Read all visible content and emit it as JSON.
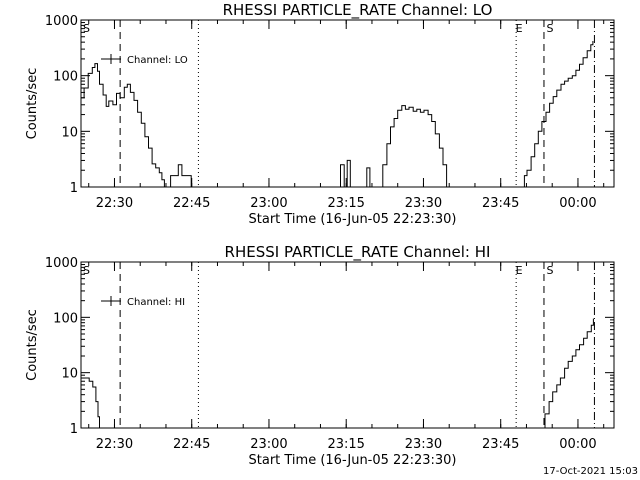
{
  "footer_date": "17-Oct-2021 15:03",
  "colors": {
    "line": "#000000",
    "background": "#ffffff"
  },
  "chart_data": [
    {
      "type": "line",
      "title": "RHESSI PARTICLE_RATE Channel: LO",
      "xlabel": "Start Time (16-Jun-05 22:23:30)",
      "ylabel": "Counts/sec",
      "yscale": "log",
      "ylim": [
        1,
        1000
      ],
      "xlim_minutes": [
        -6.5,
        61.5
      ],
      "x_ticks": [
        {
          "min": 6.5,
          "label": "22:30"
        },
        {
          "min": 21.5,
          "label": "22:45"
        },
        {
          "min": 36.5,
          "label": "23:00"
        },
        {
          "min": 51.5,
          "label": "23:15"
        },
        {
          "min": 66.5,
          "label": "23:30"
        },
        {
          "min": 81.5,
          "label": "23:45"
        },
        {
          "min": 96.5,
          "label": "00:00"
        }
      ],
      "y_ticks": [
        {
          "value": 1,
          "label": "1"
        },
        {
          "value": 10,
          "label": "10"
        },
        {
          "value": 100,
          "label": "100"
        },
        {
          "value": 1000,
          "label": "1000"
        }
      ],
      "legend": "Channel: LO",
      "series": [
        {
          "name": "Channel: LO",
          "points": [
            [
              0.0,
              40
            ],
            [
              0.6,
              60
            ],
            [
              1.4,
              110
            ],
            [
              2.2,
              140
            ],
            [
              2.7,
              165
            ],
            [
              3.2,
              120
            ],
            [
              3.6,
              70
            ],
            [
              4.3,
              45
            ],
            [
              4.9,
              28
            ],
            [
              5.4,
              35
            ],
            [
              6.2,
              30
            ],
            [
              6.9,
              48
            ],
            [
              7.6,
              40
            ],
            [
              8.4,
              62
            ],
            [
              9.0,
              70
            ],
            [
              9.6,
              50
            ],
            [
              10.3,
              36
            ],
            [
              11.0,
              22
            ],
            [
              11.7,
              14
            ],
            [
              12.4,
              8
            ],
            [
              13.1,
              5
            ],
            [
              13.8,
              2.6
            ],
            [
              14.5,
              2.2
            ],
            [
              15.2,
              1.8
            ],
            [
              15.7,
              1.35
            ],
            [
              16.2,
              1.0
            ]
          ]
        },
        {
          "name": "Channel: LO",
          "points": [
            [
              17.3,
              1.0
            ],
            [
              17.4,
              1.6
            ],
            [
              18.2,
              1.6
            ],
            [
              18.9,
              2.5
            ],
            [
              19.6,
              1.6
            ],
            [
              20.3,
              1.6
            ],
            [
              20.7,
              1.6
            ],
            [
              21.4,
              1.0
            ]
          ]
        },
        {
          "name": "Channel: LO",
          "points": [
            [
              50.1,
              1.0
            ],
            [
              50.4,
              2.5
            ],
            [
              51.1,
              1.0
            ],
            [
              51.7,
              3.0
            ],
            [
              52.3,
              1.0
            ]
          ]
        },
        {
          "name": "Channel: LO",
          "points": [
            [
              55.1,
              1.0
            ],
            [
              55.5,
              2.2
            ],
            [
              56.1,
              1.0
            ]
          ]
        },
        {
          "name": "Channel: LO",
          "points": [
            [
              57.9,
              1.0
            ],
            [
              58.6,
              2.5
            ],
            [
              59.4,
              6.0
            ],
            [
              60.1,
              12
            ],
            [
              60.8,
              17
            ],
            [
              61.5,
              24
            ],
            [
              62.3,
              29
            ],
            [
              63.0,
              25
            ],
            [
              63.7,
              27
            ],
            [
              64.5,
              23
            ],
            [
              65.2,
              25
            ],
            [
              65.9,
              22
            ],
            [
              66.6,
              24
            ],
            [
              67.4,
              20
            ],
            [
              68.1,
              15
            ],
            [
              68.8,
              9
            ],
            [
              69.6,
              5
            ],
            [
              70.3,
              2.5
            ],
            [
              71.0,
              1.0
            ]
          ]
        },
        {
          "name": "Channel: LO",
          "points": [
            [
              85.4,
              1.0
            ],
            [
              86.1,
              1.6
            ],
            [
              86.6,
              2.0
            ],
            [
              87.4,
              3.5
            ],
            [
              88.1,
              6.0
            ],
            [
              88.8,
              10
            ],
            [
              89.5,
              15
            ],
            [
              90.3,
              22
            ],
            [
              91.0,
              32
            ],
            [
              91.7,
              42
            ],
            [
              92.4,
              55
            ],
            [
              93.2,
              70
            ],
            [
              93.9,
              80
            ],
            [
              94.6,
              90
            ],
            [
              95.4,
              100
            ],
            [
              96.1,
              125
            ],
            [
              96.8,
              160
            ],
            [
              97.5,
              210
            ],
            [
              98.3,
              280
            ],
            [
              99.0,
              360
            ],
            [
              99.4,
              420
            ]
          ]
        }
      ],
      "markers": {
        "dashed_x": [
          7.6,
          89.9
        ],
        "dotted_x": [
          22.8,
          84.5
        ],
        "dashdot_x": [
          99.7
        ],
        "labels": [
          {
            "text": "S",
            "x": 0.2
          },
          {
            "text": "E",
            "x": 84.2
          },
          {
            "text": "S",
            "x": 90.2
          }
        ]
      }
    },
    {
      "type": "line",
      "title": "RHESSI PARTICLE_RATE Channel: HI",
      "xlabel": "Start Time (16-Jun-05 22:23:30)",
      "ylabel": "Counts/sec",
      "yscale": "log",
      "ylim": [
        1,
        1000
      ],
      "xlim_minutes": [
        -6.5,
        61.5
      ],
      "x_ticks": [
        {
          "min": 6.5,
          "label": "22:30"
        },
        {
          "min": 21.5,
          "label": "22:45"
        },
        {
          "min": 36.5,
          "label": "23:00"
        },
        {
          "min": 51.5,
          "label": "23:15"
        },
        {
          "min": 66.5,
          "label": "23:30"
        },
        {
          "min": 81.5,
          "label": "23:45"
        },
        {
          "min": 96.5,
          "label": "00:00"
        }
      ],
      "y_ticks": [
        {
          "value": 1,
          "label": "1"
        },
        {
          "value": 10,
          "label": "10"
        },
        {
          "value": 100,
          "label": "100"
        },
        {
          "value": 1000,
          "label": "1000"
        }
      ],
      "legend": "Channel: HI",
      "series": [
        {
          "name": "Channel: HI",
          "points": [
            [
              0.0,
              8
            ],
            [
              0.8,
              8
            ],
            [
              1.6,
              7
            ],
            [
              2.3,
              5.5
            ],
            [
              2.9,
              3
            ],
            [
              3.3,
              1.6
            ],
            [
              3.6,
              1.0
            ]
          ]
        },
        {
          "name": "Channel: HI",
          "points": [
            [
              89.7,
              1.0
            ],
            [
              90.1,
              1.8
            ],
            [
              90.9,
              3
            ],
            [
              91.6,
              4.5
            ],
            [
              92.4,
              6
            ],
            [
              93.1,
              8
            ],
            [
              93.9,
              12
            ],
            [
              94.6,
              16
            ],
            [
              95.4,
              20
            ],
            [
              96.1,
              26
            ],
            [
              96.8,
              32
            ],
            [
              97.6,
              42
            ],
            [
              98.3,
              55
            ],
            [
              99.1,
              72
            ],
            [
              99.5,
              95
            ]
          ]
        }
      ],
      "markers": {
        "dashed_x": [
          7.6,
          89.9
        ],
        "dotted_x": [
          22.8,
          84.5
        ],
        "dashdot_x": [
          99.7
        ],
        "labels": [
          {
            "text": "S",
            "x": 0.2
          },
          {
            "text": "E",
            "x": 84.2
          },
          {
            "text": "S",
            "x": 90.2
          }
        ]
      }
    }
  ]
}
